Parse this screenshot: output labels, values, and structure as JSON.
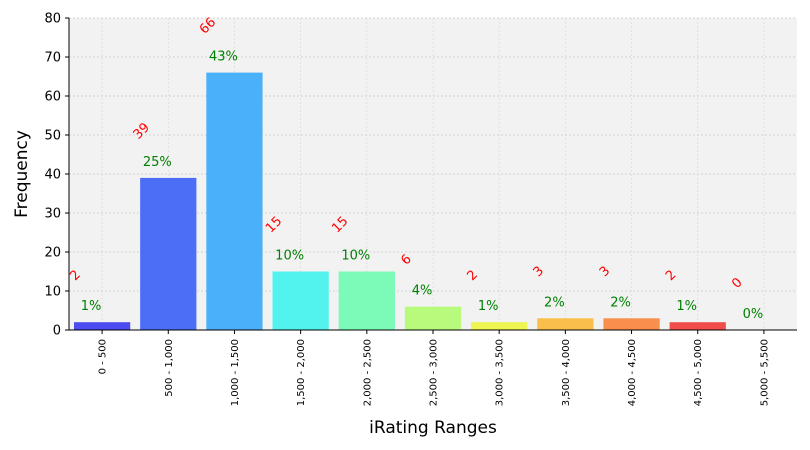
{
  "chart_data": {
    "type": "bar",
    "title": "",
    "xlabel": "iRating Ranges",
    "ylabel": "Frequency",
    "ylim": [
      0,
      80
    ],
    "yticks": [
      0,
      10,
      20,
      30,
      40,
      50,
      60,
      70,
      80
    ],
    "grid": true,
    "categories": [
      "0 - 500",
      "500 - 1,000",
      "1,000 - 1,500",
      "1,500 - 2,000",
      "2,000 - 2,500",
      "2,500 - 3,000",
      "3,000 - 3,500",
      "3,500 - 4,000",
      "4,000 - 4,500",
      "4,500 - 5,000",
      "5,000 - 5,500"
    ],
    "values": [
      2,
      39,
      66,
      15,
      15,
      6,
      2,
      3,
      3,
      2,
      0
    ],
    "percent_labels": [
      "1%",
      "25%",
      "43%",
      "10%",
      "10%",
      "4%",
      "1%",
      "2%",
      "2%",
      "1%",
      "0%"
    ],
    "bar_colors": [
      "#4c4cf0",
      "#4c6ef7",
      "#4ab0f9",
      "#52f2ee",
      "#7cfbb8",
      "#b8fb7c",
      "#eef550",
      "#f9bf4a",
      "#f98f4c",
      "#f04c4c",
      "#d92c2c"
    ],
    "count_label_color": "#ff0000",
    "percent_label_color": "#008000",
    "plot_background": "#f2f2f2"
  }
}
